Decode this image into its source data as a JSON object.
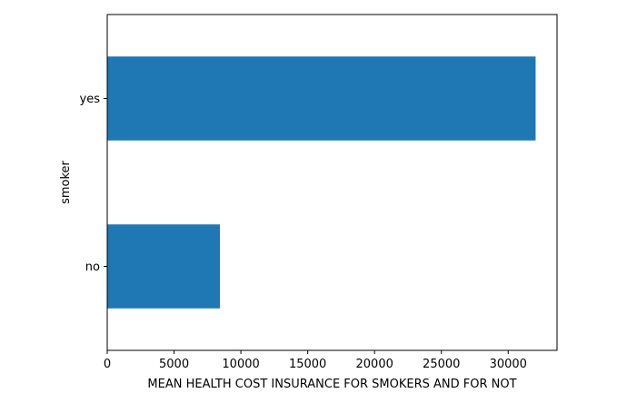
{
  "chart_data": {
    "type": "bar",
    "orientation": "horizontal",
    "categories": [
      "no",
      "yes"
    ],
    "values": [
      8434,
      32050
    ],
    "xlabel": "MEAN HEALTH COST INSURANCE FOR SMOKERS AND FOR NOT",
    "ylabel": "smoker",
    "xlim": [
      0,
      33652
    ],
    "xticks": [
      0,
      5000,
      10000,
      15000,
      20000,
      25000,
      30000
    ],
    "bar_color": "#1f77b4",
    "grid": false,
    "legend": "none"
  }
}
